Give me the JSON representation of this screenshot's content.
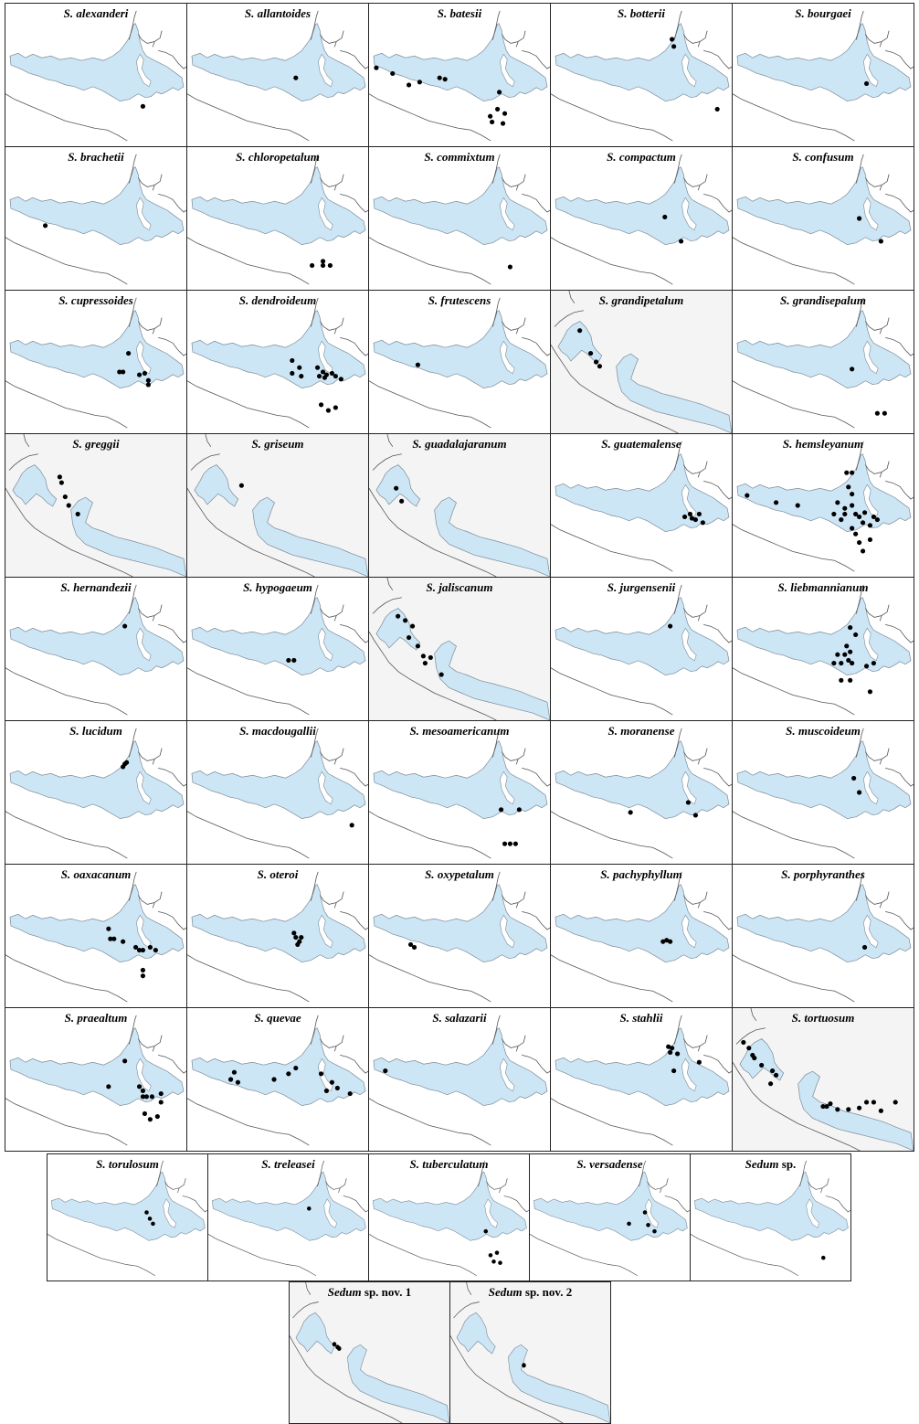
{
  "colors": {
    "range": "#cde6f6",
    "range_stroke": "#7b8a96",
    "coast": "#555555",
    "point": "#000000",
    "background": "#ffffff",
    "bg_alt": "#f4f4f4"
  },
  "panels_main": [
    {
      "genus": "S.",
      "epithet": "alexanderi",
      "map": "mx",
      "points": [
        [
          0.76,
          0.72
        ]
      ]
    },
    {
      "genus": "S.",
      "epithet": "allantoides",
      "map": "mx",
      "points": [
        [
          0.6,
          0.52
        ]
      ]
    },
    {
      "genus": "S.",
      "epithet": "batesii",
      "map": "mx",
      "points": [
        [
          0.04,
          0.45
        ],
        [
          0.13,
          0.49
        ],
        [
          0.22,
          0.57
        ],
        [
          0.28,
          0.55
        ],
        [
          0.39,
          0.52
        ],
        [
          0.42,
          0.53
        ],
        [
          0.72,
          0.62
        ],
        [
          0.71,
          0.74
        ],
        [
          0.67,
          0.79
        ],
        [
          0.68,
          0.83
        ],
        [
          0.74,
          0.84
        ],
        [
          0.75,
          0.77
        ]
      ]
    },
    {
      "genus": "S.",
      "epithet": "botterii",
      "map": "mx",
      "points": [
        [
          0.67,
          0.25
        ],
        [
          0.68,
          0.3
        ],
        [
          0.92,
          0.74
        ]
      ]
    },
    {
      "genus": "S.",
      "epithet": "bourgaei",
      "map": "mx",
      "points": [
        [
          0.74,
          0.56
        ]
      ]
    },
    {
      "genus": "S.",
      "epithet": "brachetii",
      "map": "mx",
      "points": [
        [
          0.22,
          0.55
        ]
      ]
    },
    {
      "genus": "S.",
      "epithet": "chloropetalum",
      "map": "mx",
      "points": [
        [
          0.69,
          0.83
        ],
        [
          0.75,
          0.83
        ],
        [
          0.79,
          0.83
        ],
        [
          0.75,
          0.8
        ]
      ]
    },
    {
      "genus": "S.",
      "epithet": "commixtum",
      "map": "mx",
      "points": [
        [
          0.78,
          0.84
        ]
      ]
    },
    {
      "genus": "S.",
      "epithet": "compactum",
      "map": "mx",
      "points": [
        [
          0.63,
          0.49
        ],
        [
          0.72,
          0.66
        ]
      ]
    },
    {
      "genus": "S.",
      "epithet": "confusum",
      "map": "mx",
      "points": [
        [
          0.7,
          0.5
        ],
        [
          0.82,
          0.66
        ]
      ]
    },
    {
      "genus": "S.",
      "epithet": "cupressoides",
      "map": "mx",
      "points": [
        [
          0.68,
          0.44
        ],
        [
          0.63,
          0.57
        ],
        [
          0.65,
          0.57
        ],
        [
          0.79,
          0.63
        ],
        [
          0.79,
          0.66
        ],
        [
          0.74,
          0.59
        ],
        [
          0.77,
          0.58
        ]
      ]
    },
    {
      "genus": "S.",
      "epithet": "dendroideum",
      "map": "mx",
      "points": [
        [
          0.58,
          0.49
        ],
        [
          0.58,
          0.58
        ],
        [
          0.62,
          0.54
        ],
        [
          0.63,
          0.6
        ],
        [
          0.72,
          0.54
        ],
        [
          0.75,
          0.57
        ],
        [
          0.77,
          0.59
        ],
        [
          0.73,
          0.6
        ],
        [
          0.76,
          0.61
        ],
        [
          0.8,
          0.58
        ],
        [
          0.82,
          0.6
        ],
        [
          0.85,
          0.62
        ],
        [
          0.74,
          0.8
        ],
        [
          0.78,
          0.84
        ],
        [
          0.82,
          0.82
        ]
      ]
    },
    {
      "genus": "S.",
      "epithet": "frutescens",
      "map": "mx",
      "points": [
        [
          0.27,
          0.52
        ]
      ]
    },
    {
      "genus": "S.",
      "epithet": "grandipetalum",
      "map": "west",
      "points": [
        [
          0.16,
          0.28
        ],
        [
          0.22,
          0.44
        ],
        [
          0.25,
          0.5
        ],
        [
          0.27,
          0.53
        ]
      ]
    },
    {
      "genus": "S.",
      "epithet": "grandisepalum",
      "map": "mx",
      "points": [
        [
          0.66,
          0.55
        ],
        [
          0.8,
          0.86
        ],
        [
          0.84,
          0.86
        ]
      ]
    },
    {
      "genus": "S.",
      "epithet": "greggii",
      "map": "west",
      "points": [
        [
          0.3,
          0.3
        ],
        [
          0.31,
          0.34
        ],
        [
          0.33,
          0.44
        ],
        [
          0.35,
          0.5
        ],
        [
          0.4,
          0.56
        ]
      ]
    },
    {
      "genus": "S.",
      "epithet": "griseum",
      "map": "west",
      "points": [
        [
          0.3,
          0.36
        ]
      ]
    },
    {
      "genus": "S.",
      "epithet": "guadalajaranum",
      "map": "west",
      "points": [
        [
          0.15,
          0.38
        ],
        [
          0.18,
          0.47
        ]
      ]
    },
    {
      "genus": "S.",
      "epithet": "guatemalense",
      "map": "mx",
      "points": [
        [
          0.74,
          0.58
        ],
        [
          0.77,
          0.56
        ],
        [
          0.78,
          0.59
        ],
        [
          0.8,
          0.6
        ],
        [
          0.84,
          0.62
        ],
        [
          0.82,
          0.56
        ]
      ]
    },
    {
      "genus": "S.",
      "epithet": "hemsleyanum",
      "map": "mx",
      "points": [
        [
          0.08,
          0.43
        ],
        [
          0.24,
          0.48
        ],
        [
          0.36,
          0.5
        ],
        [
          0.63,
          0.27
        ],
        [
          0.66,
          0.27
        ],
        [
          0.64,
          0.37
        ],
        [
          0.66,
          0.42
        ],
        [
          0.58,
          0.48
        ],
        [
          0.62,
          0.52
        ],
        [
          0.56,
          0.56
        ],
        [
          0.6,
          0.6
        ],
        [
          0.62,
          0.56
        ],
        [
          0.66,
          0.5
        ],
        [
          0.68,
          0.56
        ],
        [
          0.7,
          0.58
        ],
        [
          0.72,
          0.62
        ],
        [
          0.73,
          0.55
        ],
        [
          0.76,
          0.64
        ],
        [
          0.78,
          0.58
        ],
        [
          0.66,
          0.66
        ],
        [
          0.68,
          0.7
        ],
        [
          0.7,
          0.76
        ],
        [
          0.72,
          0.82
        ],
        [
          0.76,
          0.74
        ],
        [
          0.8,
          0.6
        ]
      ]
    },
    {
      "genus": "S.",
      "epithet": "hernandezii",
      "map": "mx",
      "points": [
        [
          0.66,
          0.34
        ]
      ]
    },
    {
      "genus": "S.",
      "epithet": "hypogaeum",
      "map": "mx",
      "points": [
        [
          0.56,
          0.58
        ],
        [
          0.59,
          0.58
        ]
      ]
    },
    {
      "genus": "S.",
      "epithet": "jaliscanum",
      "map": "west",
      "points": [
        [
          0.16,
          0.27
        ],
        [
          0.2,
          0.3
        ],
        [
          0.24,
          0.34
        ],
        [
          0.22,
          0.42
        ],
        [
          0.27,
          0.48
        ],
        [
          0.3,
          0.55
        ],
        [
          0.34,
          0.56
        ],
        [
          0.31,
          0.6
        ],
        [
          0.4,
          0.68
        ]
      ]
    },
    {
      "genus": "S.",
      "epithet": "jurgensenii",
      "map": "mx",
      "points": [
        [
          0.66,
          0.34
        ]
      ]
    },
    {
      "genus": "S.",
      "epithet": "liebmannianum",
      "map": "mx",
      "points": [
        [
          0.65,
          0.35
        ],
        [
          0.68,
          0.4
        ],
        [
          0.63,
          0.48
        ],
        [
          0.65,
          0.52
        ],
        [
          0.64,
          0.58
        ],
        [
          0.6,
          0.6
        ],
        [
          0.56,
          0.6
        ],
        [
          0.58,
          0.54
        ],
        [
          0.62,
          0.54
        ],
        [
          0.66,
          0.6
        ],
        [
          0.74,
          0.62
        ],
        [
          0.78,
          0.6
        ],
        [
          0.6,
          0.72
        ],
        [
          0.65,
          0.72
        ],
        [
          0.76,
          0.8
        ]
      ]
    },
    {
      "genus": "S.",
      "epithet": "lucidum",
      "map": "mx",
      "points": [
        [
          0.65,
          0.32
        ],
        [
          0.67,
          0.29
        ],
        [
          0.66,
          0.3
        ]
      ]
    },
    {
      "genus": "S.",
      "epithet": "macdougallii",
      "map": "mx",
      "points": [
        [
          0.91,
          0.73
        ]
      ]
    },
    {
      "genus": "S.",
      "epithet": "mesoamericanum",
      "map": "mx",
      "points": [
        [
          0.73,
          0.62
        ],
        [
          0.83,
          0.62
        ],
        [
          0.75,
          0.86
        ],
        [
          0.78,
          0.86
        ],
        [
          0.81,
          0.86
        ]
      ]
    },
    {
      "genus": "S.",
      "epithet": "moranense",
      "map": "mx",
      "points": [
        [
          0.76,
          0.57
        ],
        [
          0.8,
          0.66
        ],
        [
          0.44,
          0.64
        ]
      ]
    },
    {
      "genus": "S.",
      "epithet": "muscoideum",
      "map": "mx",
      "points": [
        [
          0.67,
          0.4
        ],
        [
          0.7,
          0.5
        ]
      ]
    },
    {
      "genus": "S.",
      "epithet": "oaxacanum",
      "map": "mx",
      "points": [
        [
          0.57,
          0.45
        ],
        [
          0.58,
          0.52
        ],
        [
          0.6,
          0.52
        ],
        [
          0.65,
          0.54
        ],
        [
          0.72,
          0.58
        ],
        [
          0.74,
          0.6
        ],
        [
          0.76,
          0.6
        ],
        [
          0.8,
          0.58
        ],
        [
          0.83,
          0.6
        ],
        [
          0.76,
          0.74
        ],
        [
          0.76,
          0.78
        ]
      ]
    },
    {
      "genus": "S.",
      "epithet": "oteroi",
      "map": "mx",
      "points": [
        [
          0.59,
          0.48
        ],
        [
          0.6,
          0.51
        ],
        [
          0.62,
          0.54
        ],
        [
          0.61,
          0.56
        ],
        [
          0.63,
          0.51
        ]
      ]
    },
    {
      "genus": "S.",
      "epithet": "oxypetalum",
      "map": "mx",
      "points": [
        [
          0.23,
          0.56
        ],
        [
          0.25,
          0.58
        ]
      ]
    },
    {
      "genus": "S.",
      "epithet": "pachyphyllum",
      "map": "mx",
      "points": [
        [
          0.62,
          0.54
        ],
        [
          0.66,
          0.54
        ],
        [
          0.64,
          0.53
        ]
      ]
    },
    {
      "genus": "S.",
      "epithet": "porphyranthes",
      "map": "mx",
      "points": [
        [
          0.73,
          0.58
        ]
      ]
    },
    {
      "genus": "S.",
      "epithet": "praealtum",
      "map": "mx",
      "points": [
        [
          0.66,
          0.37
        ],
        [
          0.57,
          0.55
        ],
        [
          0.74,
          0.55
        ],
        [
          0.76,
          0.58
        ],
        [
          0.76,
          0.62
        ],
        [
          0.78,
          0.62
        ],
        [
          0.81,
          0.62
        ],
        [
          0.86,
          0.6
        ],
        [
          0.86,
          0.66
        ],
        [
          0.77,
          0.74
        ],
        [
          0.8,
          0.78
        ],
        [
          0.84,
          0.76
        ]
      ]
    },
    {
      "genus": "S.",
      "epithet": "quevae",
      "map": "mx",
      "points": [
        [
          0.26,
          0.45
        ],
        [
          0.24,
          0.5
        ],
        [
          0.28,
          0.52
        ],
        [
          0.48,
          0.5
        ],
        [
          0.56,
          0.46
        ],
        [
          0.6,
          0.42
        ],
        [
          0.74,
          0.46
        ],
        [
          0.77,
          0.58
        ],
        [
          0.8,
          0.52
        ],
        [
          0.83,
          0.56
        ],
        [
          0.9,
          0.6
        ]
      ]
    },
    {
      "genus": "S.",
      "epithet": "salazarii",
      "map": "mx",
      "points": [
        [
          0.09,
          0.44
        ]
      ]
    },
    {
      "genus": "S.",
      "epithet": "stahlii",
      "map": "mx",
      "points": [
        [
          0.65,
          0.27
        ],
        [
          0.67,
          0.28
        ],
        [
          0.66,
          0.31
        ],
        [
          0.7,
          0.32
        ],
        [
          0.68,
          0.44
        ],
        [
          0.82,
          0.38
        ]
      ]
    },
    {
      "genus": "S.",
      "epithet": "tortuosum",
      "map": "west",
      "points": [
        [
          0.06,
          0.24
        ],
        [
          0.09,
          0.28
        ],
        [
          0.11,
          0.33
        ],
        [
          0.12,
          0.35
        ],
        [
          0.16,
          0.4
        ],
        [
          0.22,
          0.44
        ],
        [
          0.24,
          0.47
        ],
        [
          0.21,
          0.53
        ],
        [
          0.5,
          0.69
        ],
        [
          0.52,
          0.69
        ],
        [
          0.54,
          0.67
        ],
        [
          0.58,
          0.71
        ],
        [
          0.64,
          0.71
        ],
        [
          0.7,
          0.7
        ],
        [
          0.74,
          0.66
        ],
        [
          0.78,
          0.66
        ],
        [
          0.82,
          0.72
        ],
        [
          0.9,
          0.66
        ]
      ]
    }
  ],
  "panels_row2": [
    {
      "genus": "S.",
      "epithet": "torulosum",
      "map": "mx",
      "points": [
        [
          0.62,
          0.46
        ],
        [
          0.64,
          0.51
        ],
        [
          0.66,
          0.55
        ]
      ]
    },
    {
      "genus": "S.",
      "epithet": "treleasei",
      "map": "mx",
      "points": [
        [
          0.63,
          0.43
        ]
      ]
    },
    {
      "genus": "S.",
      "epithet": "tuberculatum",
      "map": "mx",
      "points": [
        [
          0.73,
          0.61
        ],
        [
          0.78,
          0.85
        ],
        [
          0.82,
          0.86
        ],
        [
          0.8,
          0.78
        ],
        [
          0.76,
          0.8
        ]
      ]
    },
    {
      "genus": "S.",
      "epithet": "versadense",
      "map": "mx",
      "points": [
        [
          0.62,
          0.55
        ],
        [
          0.72,
          0.46
        ],
        [
          0.74,
          0.56
        ],
        [
          0.78,
          0.61
        ]
      ]
    },
    {
      "genus": "Sedum",
      "epithet": "sp.",
      "map": "mx",
      "points": [
        [
          0.83,
          0.82
        ]
      ]
    }
  ],
  "panels_row3": [
    {
      "genus": "Sedum",
      "epithet": "sp. nov. 1",
      "map": "west",
      "points": [
        [
          0.28,
          0.44
        ],
        [
          0.3,
          0.46
        ],
        [
          0.31,
          0.47
        ]
      ]
    },
    {
      "genus": "Sedum",
      "epithet": "sp. nov. 2",
      "map": "west",
      "points": [
        [
          0.46,
          0.59
        ]
      ]
    }
  ]
}
